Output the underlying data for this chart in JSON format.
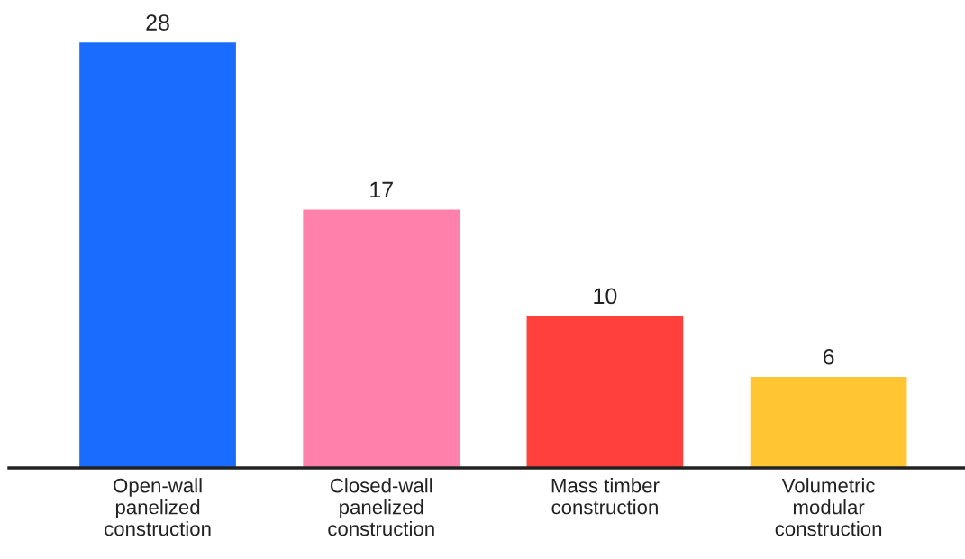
{
  "chart_data": {
    "type": "bar",
    "categories": [
      "Open-wall\npanelized\nconstruction",
      "Closed-wall\npanelized\nconstruction",
      "Mass timber\nconstruction",
      "Volumetric\nmodular\nconstruction"
    ],
    "values": [
      28,
      17,
      10,
      6
    ],
    "colors": [
      "#1a6bff",
      "#ff80aa",
      "#ff403c",
      "#ffc533"
    ],
    "data_labels": true,
    "grid": false,
    "legend": false,
    "tick_labels": "x"
  }
}
